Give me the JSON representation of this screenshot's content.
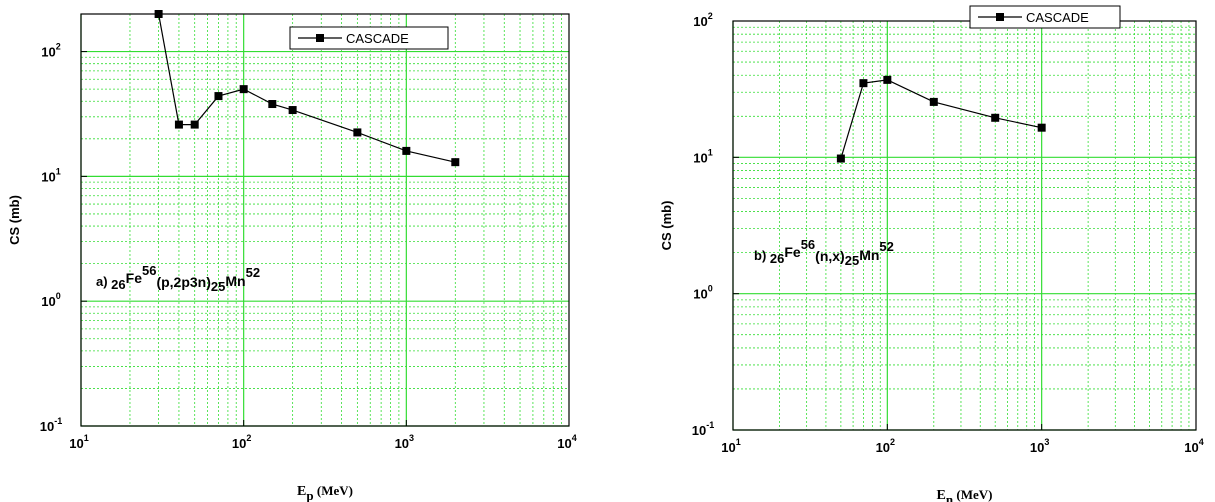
{
  "colors": {
    "grid": "#33dd33",
    "frame": "#000000",
    "series": "#000000"
  },
  "chart_data": [
    {
      "type": "line",
      "scale": "log-log",
      "grid": true,
      "legend_position": "top-right",
      "series": [
        {
          "name": "CASCADE",
          "x": [
            30,
            40,
            50,
            70,
            100,
            150,
            200,
            500,
            1000,
            2000
          ],
          "y": [
            200,
            26,
            26,
            44,
            50,
            38,
            34,
            22.5,
            16,
            13
          ]
        }
      ],
      "xlim": [
        10,
        10000
      ],
      "ylim": [
        0.1,
        200
      ],
      "x_ticks": [
        {
          "base": "10",
          "exp": "1"
        },
        {
          "base": "10",
          "exp": "2"
        },
        {
          "base": "10",
          "exp": "3"
        },
        {
          "base": "10",
          "exp": "4"
        }
      ],
      "y_ticks": [
        {
          "base": "10",
          "exp": "-1"
        },
        {
          "base": "10",
          "exp": "0"
        },
        {
          "base": "10",
          "exp": "1"
        },
        {
          "base": "10",
          "exp": "2"
        }
      ],
      "ylabel": "CS (mb)",
      "xlabel": {
        "main": "E",
        "sub": "p",
        "unit": "(MeV)"
      },
      "annotation": {
        "prefix": "a) ",
        "z": "26",
        "element": "Fe",
        "mass": "56",
        "reaction": "(p,2p3n)",
        "z2": "25",
        "product": "Mn",
        "mass2": "52"
      }
    },
    {
      "type": "line",
      "scale": "log-log",
      "grid": true,
      "legend_position": "top-right",
      "series": [
        {
          "name": "CASCADE",
          "x": [
            50,
            70,
            100,
            200,
            500,
            1000
          ],
          "y": [
            9.8,
            35,
            37,
            25.5,
            19.5,
            16.5
          ]
        }
      ],
      "xlim": [
        10,
        10000
      ],
      "ylim": [
        0.1,
        100
      ],
      "x_ticks": [
        {
          "base": "10",
          "exp": "1"
        },
        {
          "base": "10",
          "exp": "2"
        },
        {
          "base": "10",
          "exp": "3"
        },
        {
          "base": "10",
          "exp": "4"
        }
      ],
      "y_ticks": [
        {
          "base": "10",
          "exp": "-1"
        },
        {
          "base": "10",
          "exp": "0"
        },
        {
          "base": "10",
          "exp": "1"
        },
        {
          "base": "10",
          "exp": "2"
        }
      ],
      "ylabel": "CS (mb)",
      "xlabel": {
        "main": "E",
        "sub": "n",
        "unit": "(MeV)"
      },
      "annotation": {
        "prefix": "b) ",
        "z": "26",
        "element": "Fe",
        "mass": "56",
        "reaction": "(n,x)",
        "z2": "25",
        "product": "Mn",
        "mass2": "52"
      }
    }
  ]
}
